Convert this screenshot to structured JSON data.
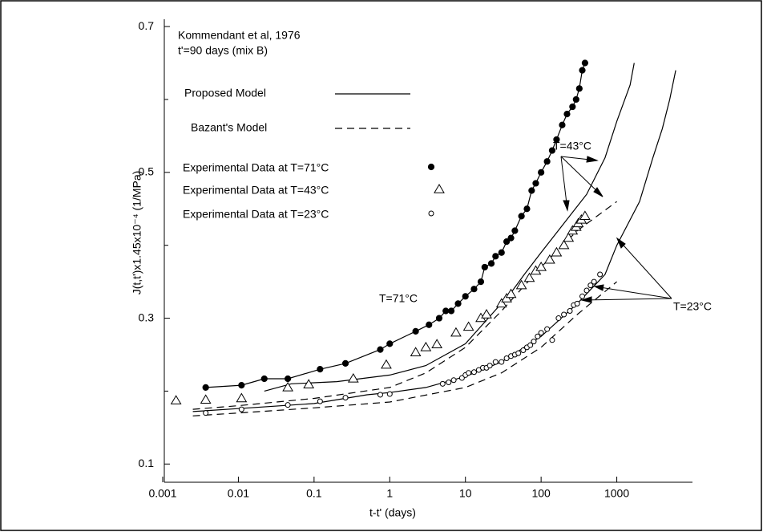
{
  "chart_data": {
    "type": "scatter",
    "annotations": [
      "Kommendant et al, 1976",
      "t'=90 days (mix B)",
      "T=43°C",
      "T=71°C",
      "T=23°C"
    ],
    "x_label": "t-t' (days)",
    "y_label": "J(t,t')x1.45x10⁻⁴ (1/MPa)",
    "log_x": true,
    "xlim": [
      0.001,
      10000
    ],
    "xticks": [
      0.001,
      0.01,
      0.1,
      1,
      10,
      100,
      1000
    ],
    "ylim": [
      0.075,
      0.71
    ],
    "yticks": [
      0.1,
      0.3,
      0.5,
      0.7
    ],
    "yminor": [
      0.2,
      0.4,
      0.6
    ],
    "color": "#000000",
    "legend": [
      {
        "label": "Proposed Model",
        "style": "solid"
      },
      {
        "label": "Bazant's Model",
        "style": "dashed"
      }
    ],
    "series": [
      {
        "name": "Experimental Data at T=71°C",
        "marker": "filled-circle",
        "line": true,
        "x": [
          0.0037,
          0.011,
          0.022,
          0.045,
          0.12,
          0.26,
          0.75,
          1.0,
          2.2,
          3.3,
          4.5,
          5.5,
          6.5,
          8,
          10,
          13,
          16,
          18,
          22,
          25,
          30,
          35,
          40,
          45,
          55,
          65,
          75,
          85,
          100,
          120,
          140,
          160,
          190,
          220,
          260,
          290,
          320,
          350,
          380
        ],
        "values": [
          0.205,
          0.208,
          0.217,
          0.217,
          0.23,
          0.238,
          0.257,
          0.265,
          0.282,
          0.291,
          0.3,
          0.31,
          0.31,
          0.32,
          0.33,
          0.34,
          0.35,
          0.37,
          0.375,
          0.385,
          0.39,
          0.405,
          0.41,
          0.42,
          0.44,
          0.45,
          0.475,
          0.485,
          0.5,
          0.515,
          0.53,
          0.545,
          0.565,
          0.58,
          0.59,
          0.6,
          0.615,
          0.64,
          0.65
        ]
      },
      {
        "name": "Experimental Data at T=43°C",
        "marker": "triangle",
        "line": false,
        "x": [
          0.0015,
          0.0037,
          0.011,
          0.045,
          0.085,
          0.33,
          0.9,
          2.2,
          3.0,
          4.2,
          7.5,
          11,
          16,
          19,
          30,
          35,
          40,
          55,
          70,
          85,
          100,
          130,
          160,
          200,
          230,
          260,
          290,
          310,
          340,
          380
        ],
        "values": [
          0.187,
          0.188,
          0.19,
          0.205,
          0.209,
          0.217,
          0.236,
          0.253,
          0.26,
          0.264,
          0.28,
          0.288,
          0.3,
          0.305,
          0.32,
          0.327,
          0.333,
          0.345,
          0.355,
          0.365,
          0.37,
          0.38,
          0.39,
          0.4,
          0.41,
          0.42,
          0.425,
          0.43,
          0.435,
          0.44
        ]
      },
      {
        "name": "Experimental Data at T=23°C",
        "marker": "circle",
        "line": false,
        "x": [
          0.0037,
          0.011,
          0.045,
          0.12,
          0.26,
          0.75,
          1.0,
          5,
          6,
          7,
          9,
          10,
          11,
          13,
          15,
          17,
          19,
          21,
          25,
          30,
          35,
          40,
          45,
          50,
          58,
          65,
          72,
          80,
          90,
          100,
          120,
          140,
          170,
          200,
          240,
          270,
          300,
          350,
          400,
          450,
          500,
          600
        ],
        "values": [
          0.17,
          0.175,
          0.181,
          0.186,
          0.191,
          0.195,
          0.196,
          0.21,
          0.212,
          0.215,
          0.218,
          0.222,
          0.225,
          0.226,
          0.229,
          0.232,
          0.232,
          0.235,
          0.24,
          0.24,
          0.245,
          0.248,
          0.25,
          0.252,
          0.256,
          0.26,
          0.263,
          0.268,
          0.275,
          0.28,
          0.285,
          0.27,
          0.3,
          0.305,
          0.31,
          0.318,
          0.32,
          0.33,
          0.338,
          0.345,
          0.35,
          0.36
        ]
      }
    ],
    "curves": [
      {
        "style": "solid",
        "x": [
          0.022,
          0.05,
          0.2,
          1,
          3,
          10,
          20,
          40,
          60,
          100,
          200,
          400,
          700,
          1000,
          1500,
          1700
        ],
        "values": [
          0.2,
          0.21,
          0.213,
          0.222,
          0.235,
          0.265,
          0.3,
          0.335,
          0.36,
          0.39,
          0.43,
          0.47,
          0.52,
          0.57,
          0.62,
          0.65
        ]
      },
      {
        "style": "dashed",
        "x": [
          0.0025,
          0.01,
          0.1,
          1,
          3,
          10,
          30,
          100,
          300,
          1000
        ],
        "values": [
          0.175,
          0.18,
          0.19,
          0.205,
          0.225,
          0.26,
          0.31,
          0.37,
          0.42,
          0.46
        ]
      },
      {
        "style": "solid",
        "x": [
          0.0025,
          0.01,
          0.1,
          0.5,
          1,
          3,
          10,
          30,
          100,
          300,
          700,
          1000,
          2000,
          3000,
          4000,
          5000,
          6000
        ],
        "values": [
          0.172,
          0.176,
          0.183,
          0.195,
          0.198,
          0.205,
          0.22,
          0.24,
          0.275,
          0.32,
          0.36,
          0.4,
          0.46,
          0.52,
          0.56,
          0.6,
          0.64
        ]
      },
      {
        "style": "dashed",
        "x": [
          0.0025,
          0.01,
          0.1,
          1,
          10,
          30,
          100,
          300,
          1000
        ],
        "values": [
          0.166,
          0.17,
          0.177,
          0.185,
          0.205,
          0.225,
          0.26,
          0.305,
          0.35
        ]
      }
    ]
  }
}
